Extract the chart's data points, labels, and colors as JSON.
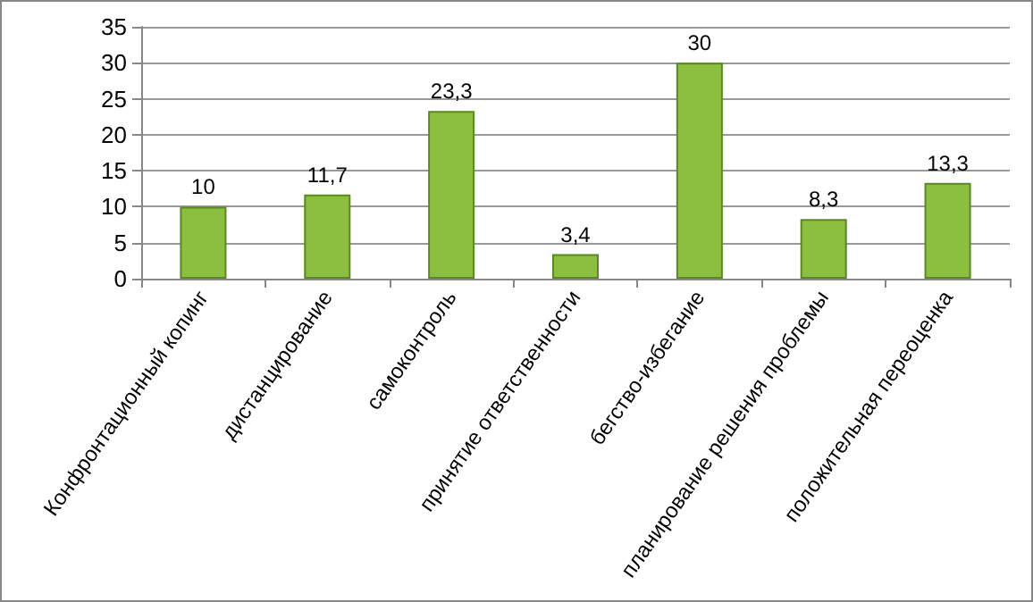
{
  "chart_data": {
    "type": "bar",
    "categories": [
      "Конфронтационный копинг",
      "дистанцирование",
      "самоконтроль",
      "принятие ответственности",
      "бегство-избегание",
      "планирование решения проблемы",
      "положительная переоценка"
    ],
    "values": [
      10,
      11.7,
      23.3,
      3.4,
      30,
      8.3,
      13.3
    ],
    "value_labels": [
      "10",
      "11,7",
      "23,3",
      "3,4",
      "30",
      "8,3",
      "13,3"
    ],
    "color": "#8cbf3f",
    "ylim": [
      0,
      35
    ],
    "yticks": [
      0,
      5,
      10,
      15,
      20,
      25,
      30,
      35
    ],
    "grid": "y"
  }
}
